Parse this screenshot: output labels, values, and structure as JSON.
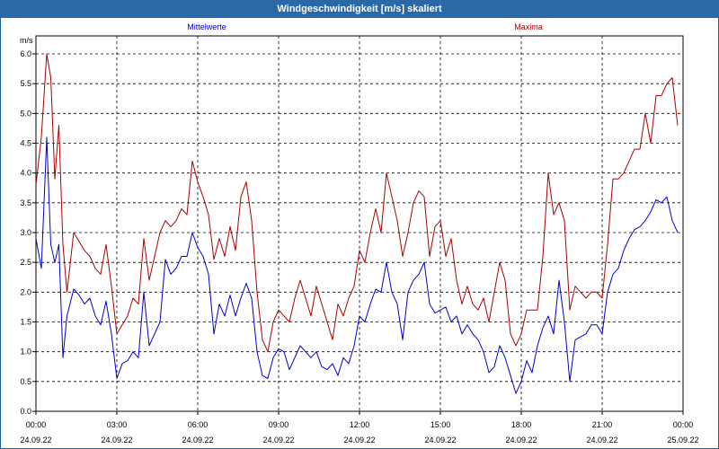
{
  "window": {
    "title": "Windgeschwindigkeit [m/s] skaliert"
  },
  "chart_data": {
    "type": "line",
    "title": "Windgeschwindigkeit [m/s] skaliert",
    "ylabel": "m/s",
    "ylim": [
      0,
      6.0
    ],
    "xlim": [
      0,
      24
    ],
    "grid": true,
    "yticks": [
      "0.0",
      "0.5",
      "1.0",
      "1.5",
      "2.0",
      "2.5",
      "3.0",
      "3.5",
      "4.0",
      "4.5",
      "5.0",
      "5.5",
      "6.0"
    ],
    "xticks": [
      {
        "time": "00:00",
        "date": "24.09.22"
      },
      {
        "time": "03:00",
        "date": "24.09.22"
      },
      {
        "time": "06:00",
        "date": "24.09.22"
      },
      {
        "time": "09:00",
        "date": "24.09.22"
      },
      {
        "time": "12:00",
        "date": "24.09.22"
      },
      {
        "time": "15:00",
        "date": "24.09.22"
      },
      {
        "time": "18:00",
        "date": "24.09.22"
      },
      {
        "time": "21:00",
        "date": "24.09.22"
      },
      {
        "time": "00:00",
        "date": "25.09.22"
      }
    ],
    "series": [
      {
        "name": "Mittelwerte",
        "color": "#0000cc",
        "values": [
          [
            0,
            2.9
          ],
          [
            0.2,
            2.4
          ],
          [
            0.4,
            4.6
          ],
          [
            0.55,
            2.8
          ],
          [
            0.7,
            2.5
          ],
          [
            0.85,
            2.8
          ],
          [
            1.0,
            0.9
          ],
          [
            1.15,
            1.6
          ],
          [
            1.4,
            2.05
          ],
          [
            1.6,
            1.95
          ],
          [
            1.8,
            1.8
          ],
          [
            2.0,
            1.9
          ],
          [
            2.2,
            1.6
          ],
          [
            2.4,
            1.45
          ],
          [
            2.6,
            1.85
          ],
          [
            2.8,
            1.3
          ],
          [
            3.0,
            0.55
          ],
          [
            3.2,
            0.8
          ],
          [
            3.4,
            0.85
          ],
          [
            3.6,
            1.0
          ],
          [
            3.8,
            0.9
          ],
          [
            4.0,
            2.0
          ],
          [
            4.2,
            1.1
          ],
          [
            4.4,
            1.3
          ],
          [
            4.6,
            1.5
          ],
          [
            4.8,
            2.55
          ],
          [
            5.0,
            2.3
          ],
          [
            5.2,
            2.4
          ],
          [
            5.4,
            2.6
          ],
          [
            5.6,
            2.6
          ],
          [
            5.8,
            3.0
          ],
          [
            6.0,
            2.75
          ],
          [
            6.2,
            2.6
          ],
          [
            6.4,
            2.3
          ],
          [
            6.6,
            1.3
          ],
          [
            6.8,
            1.8
          ],
          [
            7.0,
            1.6
          ],
          [
            7.2,
            1.95
          ],
          [
            7.4,
            1.6
          ],
          [
            7.6,
            1.9
          ],
          [
            7.8,
            2.15
          ],
          [
            8.0,
            1.9
          ],
          [
            8.2,
            1.0
          ],
          [
            8.4,
            0.6
          ],
          [
            8.6,
            0.55
          ],
          [
            8.8,
            0.9
          ],
          [
            9.0,
            1.05
          ],
          [
            9.2,
            1.0
          ],
          [
            9.4,
            0.7
          ],
          [
            9.6,
            0.9
          ],
          [
            9.8,
            1.1
          ],
          [
            10.0,
            1.0
          ],
          [
            10.2,
            0.9
          ],
          [
            10.4,
            1.0
          ],
          [
            10.6,
            0.75
          ],
          [
            10.8,
            0.7
          ],
          [
            11.0,
            0.8
          ],
          [
            11.2,
            0.6
          ],
          [
            11.4,
            0.9
          ],
          [
            11.6,
            0.8
          ],
          [
            11.8,
            1.1
          ],
          [
            12.0,
            1.6
          ],
          [
            12.2,
            1.5
          ],
          [
            12.4,
            1.8
          ],
          [
            12.6,
            2.05
          ],
          [
            12.8,
            2.0
          ],
          [
            13.0,
            2.5
          ],
          [
            13.2,
            2.0
          ],
          [
            13.4,
            1.8
          ],
          [
            13.6,
            1.2
          ],
          [
            13.8,
            2.0
          ],
          [
            14.0,
            2.2
          ],
          [
            14.2,
            2.3
          ],
          [
            14.4,
            2.5
          ],
          [
            14.6,
            1.8
          ],
          [
            14.8,
            1.65
          ],
          [
            15.0,
            1.7
          ],
          [
            15.2,
            1.75
          ],
          [
            15.4,
            1.5
          ],
          [
            15.6,
            1.6
          ],
          [
            15.8,
            1.3
          ],
          [
            16.0,
            1.45
          ],
          [
            16.2,
            1.3
          ],
          [
            16.4,
            1.2
          ],
          [
            16.6,
            1.0
          ],
          [
            16.8,
            0.65
          ],
          [
            17.0,
            0.75
          ],
          [
            17.2,
            1.1
          ],
          [
            17.4,
            0.9
          ],
          [
            17.6,
            0.6
          ],
          [
            17.8,
            0.3
          ],
          [
            18.0,
            0.5
          ],
          [
            18.2,
            0.85
          ],
          [
            18.4,
            0.65
          ],
          [
            18.6,
            1.1
          ],
          [
            18.8,
            1.4
          ],
          [
            19.0,
            1.6
          ],
          [
            19.2,
            1.3
          ],
          [
            19.4,
            2.2
          ],
          [
            19.6,
            1.5
          ],
          [
            19.8,
            0.5
          ],
          [
            20.0,
            1.2
          ],
          [
            20.2,
            1.25
          ],
          [
            20.4,
            1.3
          ],
          [
            20.6,
            1.45
          ],
          [
            20.8,
            1.45
          ],
          [
            21.0,
            1.3
          ],
          [
            21.2,
            2.0
          ],
          [
            21.4,
            2.3
          ],
          [
            21.6,
            2.4
          ],
          [
            21.8,
            2.7
          ],
          [
            22.0,
            2.9
          ],
          [
            22.2,
            3.05
          ],
          [
            22.4,
            3.1
          ],
          [
            22.6,
            3.2
          ],
          [
            22.8,
            3.35
          ],
          [
            23.0,
            3.55
          ],
          [
            23.2,
            3.5
          ],
          [
            23.4,
            3.6
          ],
          [
            23.6,
            3.2
          ],
          [
            23.8,
            3.0
          ]
        ]
      },
      {
        "name": "Maxima",
        "color": "#aa0000",
        "values": [
          [
            0,
            3.8
          ],
          [
            0.2,
            4.6
          ],
          [
            0.4,
            6.0
          ],
          [
            0.55,
            5.6
          ],
          [
            0.7,
            3.9
          ],
          [
            0.85,
            4.8
          ],
          [
            1.0,
            2.8
          ],
          [
            1.15,
            2.0
          ],
          [
            1.4,
            3.0
          ],
          [
            1.6,
            2.85
          ],
          [
            1.8,
            2.7
          ],
          [
            2.0,
            2.6
          ],
          [
            2.2,
            2.4
          ],
          [
            2.4,
            2.3
          ],
          [
            2.6,
            2.8
          ],
          [
            2.8,
            2.1
          ],
          [
            3.0,
            1.3
          ],
          [
            3.2,
            1.45
          ],
          [
            3.4,
            1.6
          ],
          [
            3.6,
            1.9
          ],
          [
            3.8,
            1.8
          ],
          [
            4.0,
            2.9
          ],
          [
            4.2,
            2.2
          ],
          [
            4.4,
            2.6
          ],
          [
            4.6,
            3.0
          ],
          [
            4.8,
            3.2
          ],
          [
            5.0,
            3.1
          ],
          [
            5.2,
            3.2
          ],
          [
            5.4,
            3.4
          ],
          [
            5.6,
            3.3
          ],
          [
            5.8,
            4.2
          ],
          [
            6.0,
            3.85
          ],
          [
            6.2,
            3.6
          ],
          [
            6.4,
            3.3
          ],
          [
            6.6,
            2.55
          ],
          [
            6.8,
            2.9
          ],
          [
            7.0,
            2.6
          ],
          [
            7.2,
            3.1
          ],
          [
            7.4,
            2.7
          ],
          [
            7.6,
            3.6
          ],
          [
            7.8,
            3.85
          ],
          [
            8.0,
            3.2
          ],
          [
            8.2,
            2.0
          ],
          [
            8.4,
            1.2
          ],
          [
            8.6,
            1.0
          ],
          [
            8.8,
            1.5
          ],
          [
            9.0,
            1.7
          ],
          [
            9.2,
            1.6
          ],
          [
            9.4,
            1.5
          ],
          [
            9.6,
            1.9
          ],
          [
            9.8,
            2.2
          ],
          [
            10.0,
            1.9
          ],
          [
            10.2,
            1.6
          ],
          [
            10.4,
            2.1
          ],
          [
            10.6,
            1.8
          ],
          [
            10.8,
            1.5
          ],
          [
            11.0,
            1.2
          ],
          [
            11.2,
            1.8
          ],
          [
            11.4,
            1.6
          ],
          [
            11.6,
            1.9
          ],
          [
            11.8,
            2.1
          ],
          [
            12.0,
            2.7
          ],
          [
            12.2,
            2.5
          ],
          [
            12.4,
            3.0
          ],
          [
            12.6,
            3.4
          ],
          [
            12.8,
            3.0
          ],
          [
            13.0,
            4.0
          ],
          [
            13.2,
            3.6
          ],
          [
            13.4,
            3.2
          ],
          [
            13.6,
            2.6
          ],
          [
            13.8,
            3.0
          ],
          [
            14.0,
            3.5
          ],
          [
            14.2,
            3.7
          ],
          [
            14.4,
            3.6
          ],
          [
            14.6,
            2.6
          ],
          [
            14.8,
            3.1
          ],
          [
            15.0,
            3.2
          ],
          [
            15.2,
            2.6
          ],
          [
            15.4,
            2.9
          ],
          [
            15.6,
            2.2
          ],
          [
            15.8,
            1.8
          ],
          [
            16.0,
            2.1
          ],
          [
            16.2,
            1.8
          ],
          [
            16.4,
            1.7
          ],
          [
            16.6,
            1.9
          ],
          [
            16.8,
            1.5
          ],
          [
            17.0,
            2.0
          ],
          [
            17.2,
            2.5
          ],
          [
            17.4,
            2.2
          ],
          [
            17.6,
            1.3
          ],
          [
            17.8,
            1.1
          ],
          [
            18.0,
            1.3
          ],
          [
            18.2,
            1.7
          ],
          [
            18.4,
            1.7
          ],
          [
            18.6,
            1.7
          ],
          [
            18.8,
            2.6
          ],
          [
            19.0,
            4.0
          ],
          [
            19.2,
            3.3
          ],
          [
            19.4,
            3.5
          ],
          [
            19.6,
            3.2
          ],
          [
            19.8,
            1.7
          ],
          [
            20.0,
            2.1
          ],
          [
            20.2,
            2.0
          ],
          [
            20.4,
            1.9
          ],
          [
            20.6,
            2.0
          ],
          [
            20.8,
            2.0
          ],
          [
            21.0,
            1.9
          ],
          [
            21.2,
            2.8
          ],
          [
            21.4,
            3.9
          ],
          [
            21.6,
            3.9
          ],
          [
            21.8,
            4.0
          ],
          [
            22.0,
            4.2
          ],
          [
            22.2,
            4.4
          ],
          [
            22.4,
            4.4
          ],
          [
            22.6,
            5.0
          ],
          [
            22.8,
            4.5
          ],
          [
            23.0,
            5.3
          ],
          [
            23.2,
            5.3
          ],
          [
            23.4,
            5.5
          ],
          [
            23.6,
            5.6
          ],
          [
            23.8,
            4.8
          ]
        ]
      }
    ]
  }
}
